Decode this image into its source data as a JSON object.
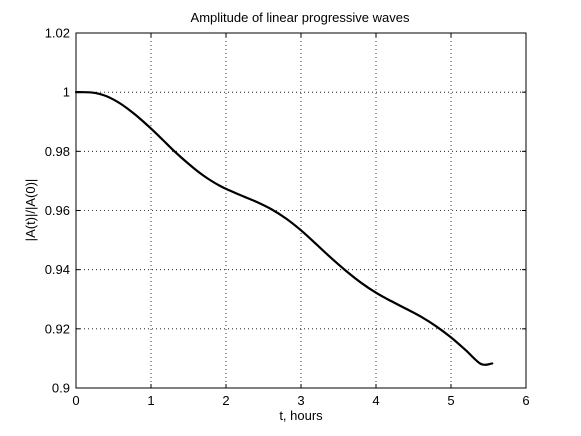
{
  "chart_data": {
    "type": "line",
    "title": "Amplitude of linear progressive waves",
    "xlabel": "t, hours",
    "ylabel": "|A(t)|/|A(0)|",
    "xlim": [
      0,
      6
    ],
    "ylim": [
      0.9,
      1.02
    ],
    "x_ticks": [
      0,
      1,
      2,
      3,
      4,
      5,
      6
    ],
    "x_tick_labels": [
      "0",
      "1",
      "2",
      "3",
      "4",
      "5",
      "6"
    ],
    "y_ticks": [
      0.9,
      0.92,
      0.94,
      0.96,
      0.98,
      1.0,
      1.02
    ],
    "y_tick_labels": [
      "0.9",
      "0.92",
      "0.94",
      "0.96",
      "0.98",
      "1",
      "1.02"
    ],
    "grid": true,
    "line_color": "#000000",
    "series": [
      {
        "x": [
          0.0,
          0.1,
          0.2,
          0.3,
          0.4,
          0.5,
          0.6,
          0.7,
          0.8,
          0.9,
          1.0,
          1.1,
          1.2,
          1.3,
          1.4,
          1.5,
          1.6,
          1.7,
          1.8,
          1.9,
          2.0,
          2.2,
          2.4,
          2.6,
          2.8,
          3.0,
          3.2,
          3.4,
          3.6,
          3.8,
          4.0,
          4.2,
          4.4,
          4.6,
          4.8,
          5.0,
          5.2,
          5.4,
          5.55
        ],
        "y": [
          1.0,
          1.0,
          0.9999,
          0.9995,
          0.9987,
          0.9975,
          0.996,
          0.9942,
          0.9922,
          0.99,
          0.9877,
          0.9853,
          0.9828,
          0.9803,
          0.978,
          0.9758,
          0.9737,
          0.9718,
          0.9701,
          0.9686,
          0.9673,
          0.9651,
          0.963,
          0.9605,
          0.9573,
          0.9533,
          0.9487,
          0.944,
          0.9396,
          0.9356,
          0.9322,
          0.9294,
          0.9268,
          0.9241,
          0.9209,
          0.9171,
          0.9127,
          0.9081,
          0.9083
        ]
      }
    ]
  }
}
